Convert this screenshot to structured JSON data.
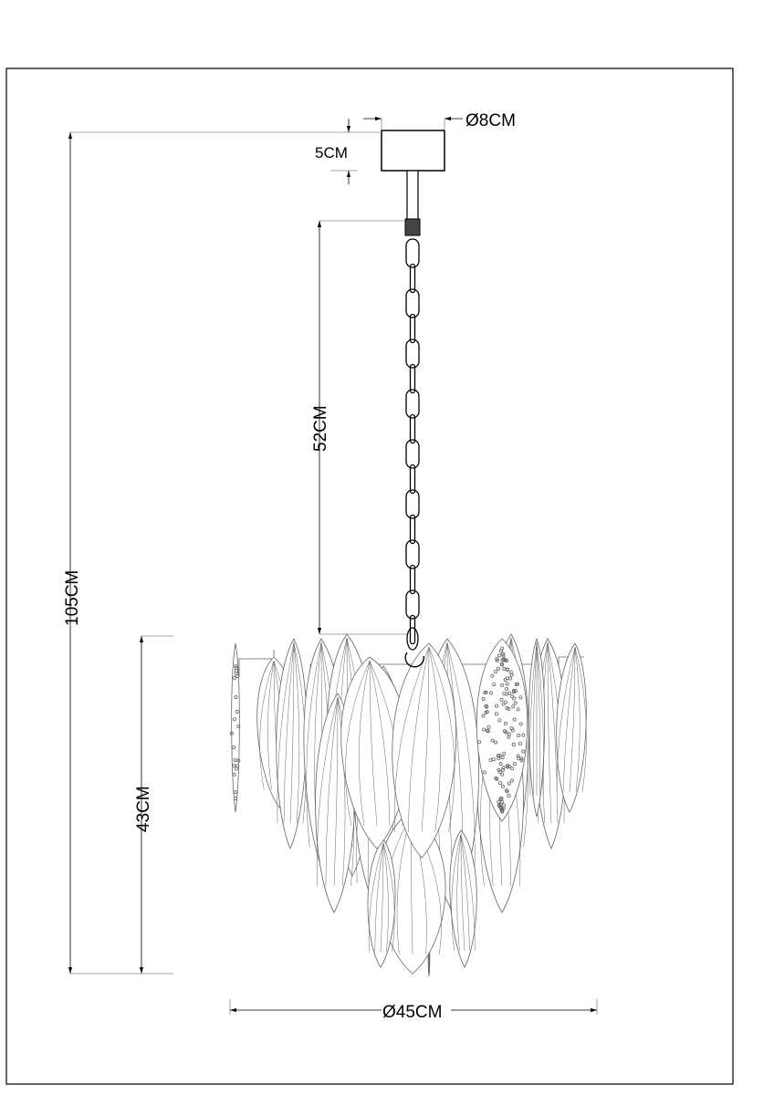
{
  "drawing": {
    "subject": "pendant-chandelier",
    "line_color": "#000000",
    "leaf_line_color": "#555555",
    "dimensions": {
      "canopy_diameter": "Ø8CM",
      "canopy_height": "5CM",
      "chain_length": "52CM",
      "total_height": "105CM",
      "body_height": "43CM",
      "body_diameter": "Ø45CM"
    }
  }
}
